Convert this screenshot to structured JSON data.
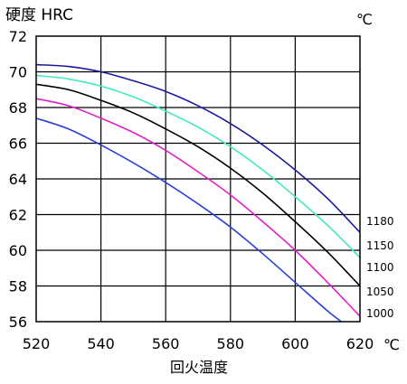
{
  "chart_data": {
    "type": "line",
    "title": "",
    "ylabel": "硬度 HRC",
    "xlabel": "回火温度",
    "y_unit_label": "℃",
    "x_unit_label": "℃",
    "xlim": [
      520,
      620
    ],
    "ylim": [
      56,
      72
    ],
    "xticks": [
      520,
      540,
      560,
      580,
      600,
      620
    ],
    "yticks": [
      56,
      58,
      60,
      62,
      64,
      66,
      68,
      70,
      72
    ],
    "grid": true,
    "legend": "right-edge labels",
    "series": [
      {
        "name": "1180",
        "color": "#1a1aa0",
        "points": [
          [
            520,
            70.4
          ],
          [
            530,
            70.3
          ],
          [
            540,
            70.0
          ],
          [
            550,
            69.5
          ],
          [
            560,
            68.9
          ],
          [
            570,
            68.1
          ],
          [
            580,
            67.1
          ],
          [
            590,
            65.9
          ],
          [
            600,
            64.5
          ],
          [
            610,
            62.9
          ],
          [
            620,
            61.0
          ]
        ]
      },
      {
        "name": "1150",
        "color": "#44e8c0",
        "points": [
          [
            520,
            69.8
          ],
          [
            530,
            69.6
          ],
          [
            540,
            69.2
          ],
          [
            550,
            68.6
          ],
          [
            560,
            67.8
          ],
          [
            570,
            66.9
          ],
          [
            580,
            65.8
          ],
          [
            590,
            64.5
          ],
          [
            600,
            63.0
          ],
          [
            610,
            61.4
          ],
          [
            620,
            59.6
          ]
        ]
      },
      {
        "name": "1100",
        "color": "#000000",
        "points": [
          [
            520,
            69.3
          ],
          [
            530,
            69.0
          ],
          [
            540,
            68.4
          ],
          [
            550,
            67.7
          ],
          [
            560,
            66.8
          ],
          [
            570,
            65.8
          ],
          [
            580,
            64.6
          ],
          [
            590,
            63.2
          ],
          [
            600,
            61.6
          ],
          [
            610,
            59.9
          ],
          [
            620,
            58.0
          ]
        ]
      },
      {
        "name": "1050",
        "color": "#e020c8",
        "points": [
          [
            520,
            68.5
          ],
          [
            530,
            68.1
          ],
          [
            540,
            67.4
          ],
          [
            550,
            66.6
          ],
          [
            560,
            65.6
          ],
          [
            570,
            64.4
          ],
          [
            580,
            63.1
          ],
          [
            590,
            61.6
          ],
          [
            600,
            60.0
          ],
          [
            610,
            58.2
          ],
          [
            620,
            56.3
          ]
        ]
      },
      {
        "name": "1000",
        "color": "#2a3fd8",
        "points": [
          [
            520,
            67.4
          ],
          [
            530,
            66.8
          ],
          [
            540,
            65.9
          ],
          [
            550,
            64.9
          ],
          [
            560,
            63.8
          ],
          [
            570,
            62.6
          ],
          [
            580,
            61.3
          ],
          [
            590,
            59.8
          ],
          [
            600,
            58.2
          ],
          [
            610,
            56.6
          ],
          [
            615,
            55.9
          ]
        ]
      }
    ]
  }
}
